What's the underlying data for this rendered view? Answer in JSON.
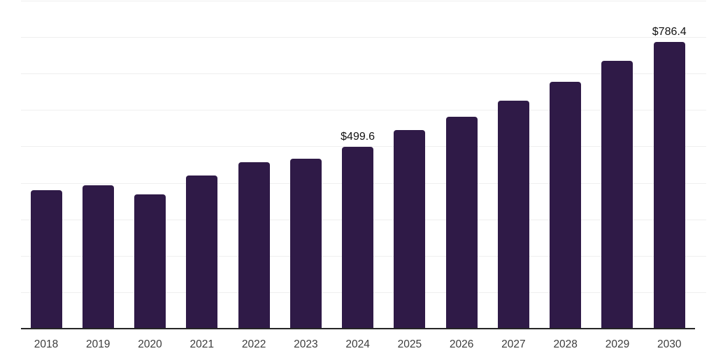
{
  "chart_data": {
    "type": "bar",
    "title": "",
    "xlabel": "",
    "ylabel": "",
    "categories": [
      "2018",
      "2019",
      "2020",
      "2021",
      "2022",
      "2023",
      "2024",
      "2025",
      "2026",
      "2027",
      "2028",
      "2029",
      "2030"
    ],
    "values": [
      379.1,
      392.5,
      368.5,
      420.3,
      455.8,
      465.4,
      499.6,
      545.1,
      581.4,
      625.6,
      678.3,
      734.9,
      786.4
    ],
    "labeled_points": [
      {
        "category": "2024",
        "label": "$499.6"
      },
      {
        "category": "2030",
        "label": "$786.4"
      }
    ],
    "ylim": [
      0,
      900
    ],
    "grid": true,
    "gridline_values": [
      100,
      200,
      300,
      400,
      500,
      600,
      700,
      800,
      900
    ],
    "legend_position": "none",
    "y_axis_tick_labels_visible": false,
    "colors": {
      "bar": "#2f1a47",
      "gridline": "#efefef",
      "axis_line": "#262626",
      "tick_label": "#3c3c3c",
      "data_label": "#111111",
      "background": "#ffffff"
    }
  }
}
